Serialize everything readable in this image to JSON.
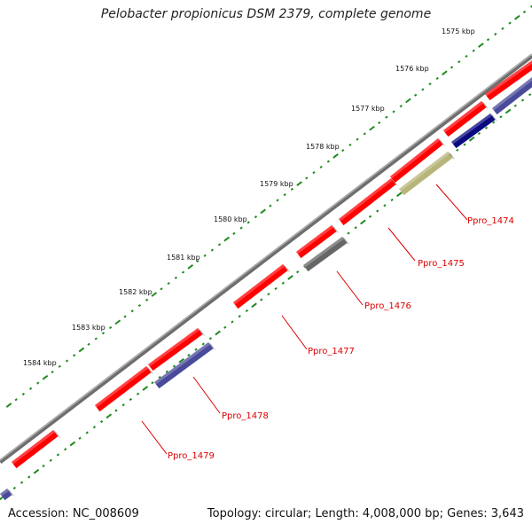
{
  "title": "Pelobacter propionicus DSM 2379, complete genome",
  "accession": "Accession: NC_008609",
  "summary": "Topology: circular; Length: 4,008,000 bp; Genes: 3,643",
  "colors": {
    "backbone": "#8a8a8a",
    "ticks": "#1f8a1f",
    "gene_forward": "#ff0000",
    "gene_reverse_blue": "#4a4a9a",
    "gene_reverse_navy": "#0a0a80",
    "gene_reverse_grey": "#666666",
    "gene_reverse_olive": "#b8b57a",
    "label": "#dd0000"
  },
  "kbp_markers": [
    {
      "label": "1575 kbp"
    },
    {
      "label": "1576 kbp"
    },
    {
      "label": "1577 kbp"
    },
    {
      "label": "1578 kbp"
    },
    {
      "label": "1579 kbp"
    },
    {
      "label": "1580 kbp"
    },
    {
      "label": "1581 kbp"
    },
    {
      "label": "1582 kbp"
    },
    {
      "label": "1583 kbp"
    },
    {
      "label": "1584 kbp"
    }
  ],
  "gene_labels": [
    {
      "name": "Ppro_1474"
    },
    {
      "name": "Ppro_1475"
    },
    {
      "name": "Ppro_1476"
    },
    {
      "name": "Ppro_1477"
    },
    {
      "name": "Ppro_1478"
    },
    {
      "name": "Ppro_1479"
    }
  ]
}
